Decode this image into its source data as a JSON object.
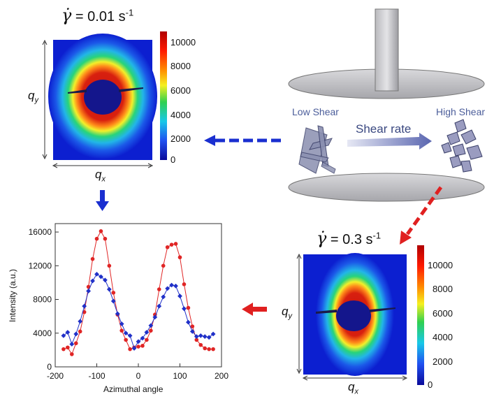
{
  "diagram": {
    "top_left_panel": {
      "rate_symbol": "γ̇",
      "rate_text": " = 0.01 s",
      "rate_unit_exp": "-1",
      "x_axis": "q",
      "x_sub": "x",
      "y_axis": "q",
      "y_sub": "y",
      "colorbar_ticks": [
        "10000",
        "8000",
        "6000",
        "4000",
        "2000",
        "0"
      ]
    },
    "bottom_right_panel": {
      "rate_symbol": "γ̇",
      "rate_text": " = 0.3 s",
      "rate_unit_exp": "-1",
      "x_axis": "q",
      "x_sub": "x",
      "y_axis": "q",
      "y_sub": "y",
      "colorbar_ticks": [
        "10000",
        "8000",
        "6000",
        "4000",
        "2000",
        "0"
      ]
    },
    "rheometer": {
      "low_label": "Low Shear",
      "high_label": "High Shear",
      "arrow_label": "Shear rate"
    },
    "colors": {
      "blue_arrow": "#1a2fd0",
      "red_arrow": "#e02020"
    }
  },
  "chart_data": {
    "type": "line",
    "xlabel": "Azimuthal angle",
    "ylabel": "Intensity (a.u.)",
    "xlim": [
      -200,
      200
    ],
    "ylim": [
      0,
      17000
    ],
    "x_ticks": [
      -200,
      -100,
      0,
      100,
      200
    ],
    "y_ticks": [
      0,
      4000,
      8000,
      12000,
      16000
    ],
    "x_tick_labels": [
      "-200",
      "-100",
      "0",
      "100",
      "200"
    ],
    "y_tick_labels": [
      "0",
      "4000",
      "8000",
      "12000",
      "16000"
    ],
    "x": [
      -180,
      -170,
      -160,
      -150,
      -140,
      -130,
      -120,
      -110,
      -100,
      -90,
      -80,
      -70,
      -60,
      -50,
      -40,
      -30,
      -20,
      -10,
      0,
      10,
      20,
      30,
      40,
      50,
      60,
      70,
      80,
      90,
      100,
      110,
      120,
      130,
      140,
      150,
      160,
      170,
      180
    ],
    "series": [
      {
        "name": "0.3 s-1",
        "color": "#e02525",
        "marker": "circle",
        "values": [
          2100,
          2300,
          1500,
          2800,
          4200,
          6500,
          9500,
          12800,
          15200,
          16100,
          15200,
          12000,
          8800,
          6200,
          4300,
          3200,
          2100,
          2300,
          2400,
          2500,
          3200,
          4300,
          6200,
          9200,
          12000,
          14200,
          14500,
          14600,
          13000,
          9800,
          7000,
          4800,
          3200,
          2600,
          2200,
          2100,
          2100
        ]
      },
      {
        "name": "0.01 s-1",
        "color": "#2030c8",
        "marker": "diamond",
        "values": [
          3700,
          4100,
          2700,
          3900,
          5400,
          7200,
          9000,
          10200,
          11000,
          10700,
          10300,
          9200,
          7800,
          6300,
          5100,
          4000,
          3700,
          2200,
          3000,
          3400,
          4100,
          4900,
          5900,
          7200,
          8300,
          9300,
          9700,
          9600,
          8400,
          6900,
          5300,
          4200,
          3600,
          3700,
          3600,
          3500,
          3900
        ]
      }
    ]
  }
}
